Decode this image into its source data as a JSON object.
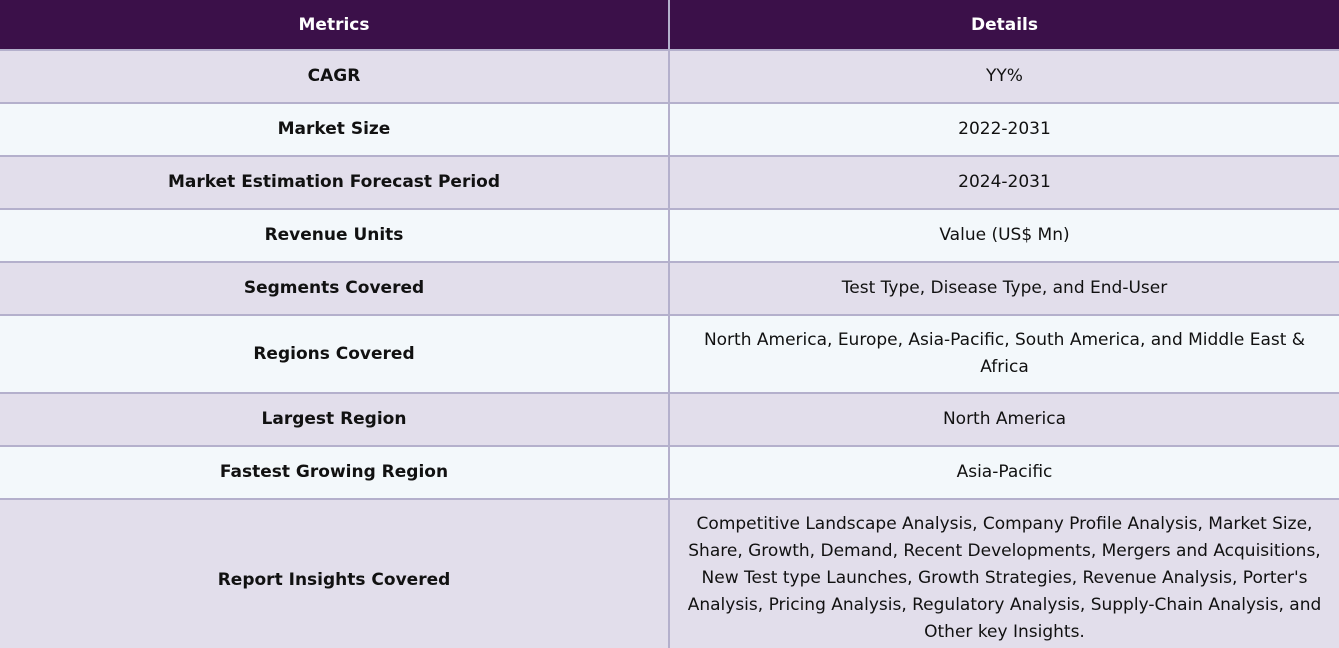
{
  "header": {
    "metrics_label": "Metrics",
    "details_label": "Details"
  },
  "rows": [
    {
      "metric": "CAGR",
      "detail": "YY%"
    },
    {
      "metric": "Market Size",
      "detail": "2022-2031"
    },
    {
      "metric": "Market Estimation Forecast Period",
      "detail": "2024-2031"
    },
    {
      "metric": "Revenue Units",
      "detail": "Value (US$ Mn)"
    },
    {
      "metric": "Segments Covered",
      "detail": "Test Type, Disease Type, and End-User"
    },
    {
      "metric": "Regions Covered",
      "detail": "North America, Europe, Asia-Pacific, South America, and Middle East & Africa"
    },
    {
      "metric": "Largest Region",
      "detail": "North America"
    },
    {
      "metric": "Fastest Growing Region",
      "detail": "Asia-Pacific"
    },
    {
      "metric": "Report Insights Covered",
      "detail": "Competitive Landscape Analysis, Company Profile Analysis, Market Size, Share, Growth, Demand, Recent Developments, Mergers and Acquisitions, New Test type Launches, Growth Strategies, Revenue Analysis, Porter's Analysis, Pricing Analysis, Regulatory Analysis, Supply-Chain Analysis, and Other key Insights."
    }
  ],
  "colors": {
    "header_bg": "#3b1049",
    "row_odd_bg": "#e2deeb",
    "row_even_bg": "#f3f8fb",
    "border": "#b4b0cc"
  }
}
